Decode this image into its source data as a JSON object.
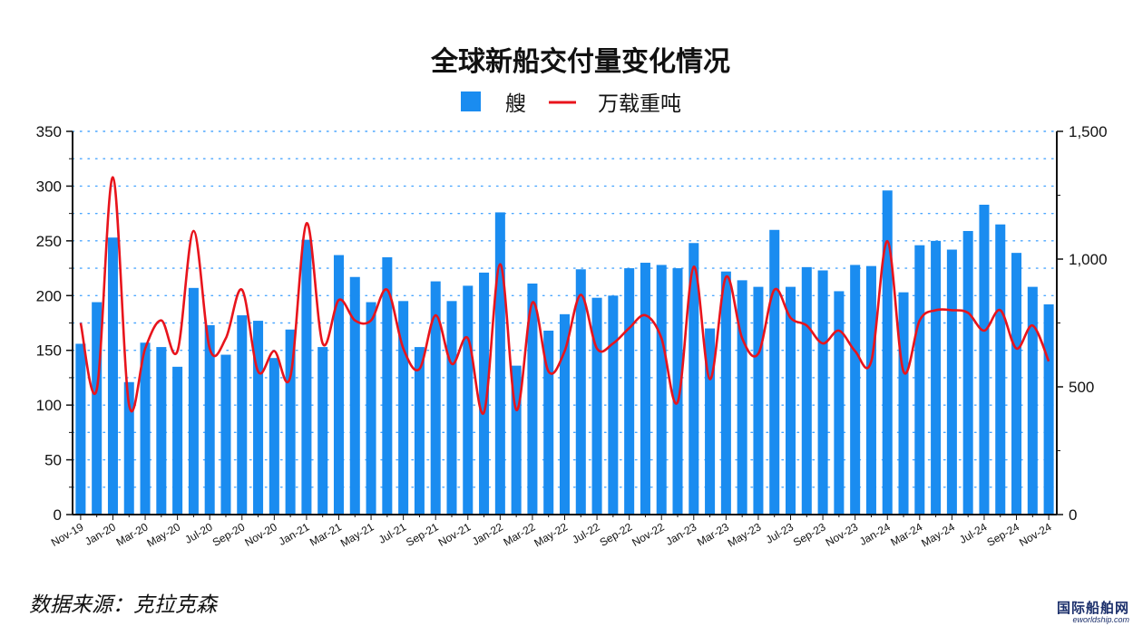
{
  "chart_data": {
    "type": "bar",
    "title": "全球新船交付量变化情况",
    "legend": {
      "placement": "top-center"
    },
    "grid": {
      "horizontal": true,
      "style": "dotted"
    },
    "x_tick_labels": [
      "Nov-19",
      "Jan-20",
      "Mar-20",
      "May-20",
      "Jul-20",
      "Sep-20",
      "Nov-20",
      "Jan-21",
      "Mar-21",
      "May-21",
      "Jul-21",
      "Sep-21",
      "Nov-21",
      "Jan-22",
      "Mar-22",
      "May-22",
      "Jul-22",
      "Sep-22",
      "Nov-22",
      "Jan-23",
      "Mar-23",
      "May-23",
      "Jul-23",
      "Sep-23",
      "Nov-23",
      "Jan-24",
      "Mar-24",
      "May-24",
      "Jul-24",
      "Sep-24",
      "Nov-24"
    ],
    "categories": [
      "Nov-19",
      "Dec-19",
      "Jan-20",
      "Feb-20",
      "Mar-20",
      "Apr-20",
      "May-20",
      "Jun-20",
      "Jul-20",
      "Aug-20",
      "Sep-20",
      "Oct-20",
      "Nov-20",
      "Dec-20",
      "Jan-21",
      "Feb-21",
      "Mar-21",
      "Apr-21",
      "May-21",
      "Jun-21",
      "Jul-21",
      "Aug-21",
      "Sep-21",
      "Oct-21",
      "Nov-21",
      "Dec-21",
      "Jan-22",
      "Feb-22",
      "Mar-22",
      "Apr-22",
      "May-22",
      "Jun-22",
      "Jul-22",
      "Aug-22",
      "Sep-22",
      "Oct-22",
      "Nov-22",
      "Dec-22",
      "Jan-23",
      "Feb-23",
      "Mar-23",
      "Apr-23",
      "May-23",
      "Jun-23",
      "Jul-23",
      "Aug-23",
      "Sep-23",
      "Oct-23",
      "Nov-23",
      "Dec-23",
      "Jan-24",
      "Feb-24",
      "Mar-24",
      "Apr-24",
      "May-24",
      "Jun-24",
      "Jul-24",
      "Aug-24",
      "Sep-24",
      "Oct-24",
      "Nov-24"
    ],
    "series": [
      {
        "name": "艘",
        "type": "bar",
        "axis": "left",
        "color": "#1a8cf0",
        "values": [
          156,
          194,
          253,
          121,
          157,
          153,
          135,
          207,
          173,
          146,
          182,
          177,
          143,
          169,
          251,
          153,
          237,
          217,
          194,
          235,
          195,
          153,
          213,
          195,
          209,
          221,
          276,
          136,
          211,
          168,
          183,
          224,
          198,
          200,
          225,
          230,
          228,
          225,
          248,
          170,
          222,
          214,
          208,
          260,
          208,
          226,
          223,
          204,
          228,
          227,
          296,
          203,
          246,
          250,
          242,
          259,
          283,
          265,
          239,
          208,
          192
        ]
      },
      {
        "name": "万载重吨",
        "type": "line",
        "axis": "right",
        "color": "#e8141c",
        "values": [
          750,
          490,
          1320,
          430,
          650,
          760,
          640,
          1110,
          650,
          690,
          880,
          560,
          640,
          540,
          1140,
          670,
          840,
          760,
          760,
          880,
          650,
          570,
          780,
          590,
          690,
          400,
          980,
          410,
          830,
          560,
          640,
          860,
          650,
          670,
          730,
          780,
          690,
          440,
          970,
          530,
          930,
          690,
          630,
          880,
          770,
          740,
          670,
          720,
          640,
          600,
          1070,
          560,
          760,
          800,
          800,
          790,
          720,
          800,
          650,
          740,
          600
        ]
      }
    ],
    "ylim_left": [
      0,
      350
    ],
    "yticks_left": [
      0,
      50,
      100,
      150,
      200,
      250,
      300,
      350
    ],
    "ylim_right": [
      0,
      1500
    ],
    "yticks_right": [
      "0",
      "500",
      "1,000",
      "1,500"
    ]
  },
  "source_note": "数据来源：克拉克森",
  "watermark": {
    "main": "国际船舶网",
    "sub": "eworldship.com"
  }
}
